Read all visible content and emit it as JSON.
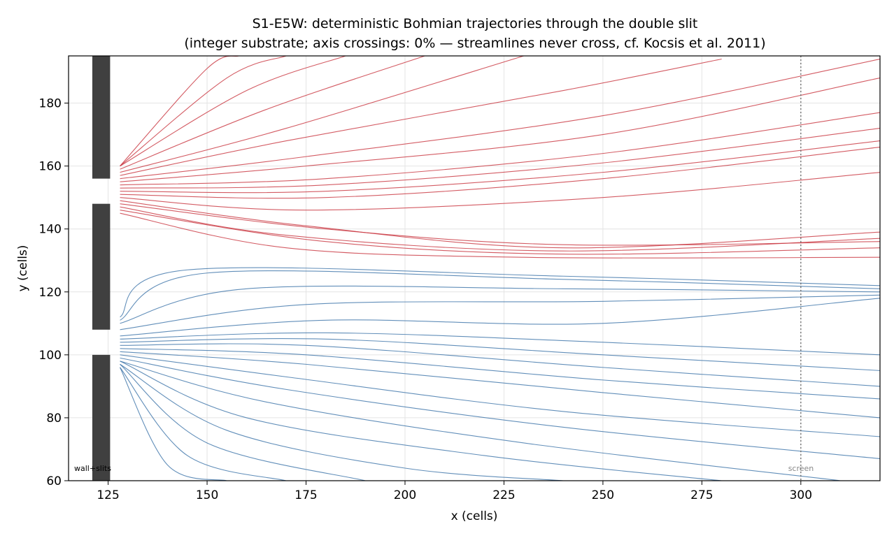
{
  "chart_data": {
    "type": "line",
    "title_line1": "S1-E5W: deterministic Bohmian trajectories through the double slit",
    "title_line2": "(integer substrate; axis crossings: 0% — streamlines never cross, cf. Kocsis et al. 2011)",
    "xlabel": "x (cells)",
    "ylabel": "y (cells)",
    "xlim": [
      115,
      320
    ],
    "ylim": [
      60,
      195
    ],
    "xticks": [
      125,
      150,
      175,
      200,
      225,
      250,
      275,
      300
    ],
    "yticks": [
      60,
      80,
      100,
      120,
      140,
      160,
      180
    ],
    "grid": true,
    "wall": {
      "x_range": [
        121,
        125.5
      ],
      "slits": [
        [
          148,
          156
        ],
        [
          100,
          108
        ]
      ],
      "label": "wall+slits"
    },
    "screen": {
      "x": 300,
      "label": "screen"
    },
    "colors": {
      "upper_slit": "#c8323c",
      "lower_slit": "#3a72a8",
      "wall": "#404040",
      "screen_line": "#666666"
    },
    "series": [
      {
        "group": "upper",
        "x": [
          128,
          180,
          240,
          320
        ],
        "y": [
          148,
          140,
          135,
          136
        ]
      },
      {
        "group": "upper",
        "x": [
          128,
          180,
          240,
          320
        ],
        "y": [
          146,
          136,
          132,
          134
        ]
      },
      {
        "group": "upper",
        "x": [
          128,
          170,
          230,
          320
        ],
        "y": [
          145,
          134,
          131,
          131
        ]
      },
      {
        "group": "upper",
        "x": [
          128,
          170,
          240,
          320
        ],
        "y": [
          147,
          138,
          133,
          137
        ]
      },
      {
        "group": "upper",
        "x": [
          128,
          175,
          240,
          320
        ],
        "y": [
          149,
          141,
          134,
          139
        ]
      },
      {
        "group": "upper",
        "x": [
          128,
          175,
          250,
          320
        ],
        "y": [
          150,
          146,
          150,
          158
        ]
      },
      {
        "group": "upper",
        "x": [
          128,
          180,
          250,
          320
        ],
        "y": [
          151,
          150,
          156,
          166
        ]
      },
      {
        "group": "upper",
        "x": [
          128,
          180,
          250,
          320
        ],
        "y": [
          152,
          152,
          158,
          168
        ]
      },
      {
        "group": "upper",
        "x": [
          128,
          180,
          250,
          320
        ],
        "y": [
          153,
          154,
          161,
          172
        ]
      },
      {
        "group": "upper",
        "x": [
          128,
          180,
          250,
          320
        ],
        "y": [
          154,
          156,
          164,
          177
        ]
      },
      {
        "group": "upper",
        "x": [
          128,
          175,
          250,
          320
        ],
        "y": [
          155,
          160,
          170,
          188
        ]
      },
      {
        "group": "upper",
        "x": [
          128,
          175,
          250,
          320
        ],
        "y": [
          156,
          163,
          176,
          194
        ]
      },
      {
        "group": "upper",
        "x": [
          128,
          170,
          240,
          280
        ],
        "y": [
          157,
          168,
          184,
          194
        ]
      },
      {
        "group": "upper",
        "x": [
          128,
          170,
          230
        ],
        "y": [
          158,
          172,
          195
        ]
      },
      {
        "group": "upper",
        "x": [
          128,
          165,
          205
        ],
        "y": [
          159,
          178,
          195
        ]
      },
      {
        "group": "upper",
        "x": [
          128,
          160,
          185
        ],
        "y": [
          160,
          184,
          195
        ]
      },
      {
        "group": "upper",
        "x": [
          128,
          155,
          170
        ],
        "y": [
          160,
          188,
          195
        ]
      },
      {
        "group": "upper",
        "x": [
          128,
          150,
          158
        ],
        "y": [
          160,
          191,
          195
        ]
      },
      {
        "group": "lower",
        "x": [
          128,
          180,
          250,
          320
        ],
        "y": [
          104,
          105,
          100,
          95
        ]
      },
      {
        "group": "lower",
        "x": [
          128,
          180,
          250,
          320
        ],
        "y": [
          105,
          107,
          104,
          100
        ]
      },
      {
        "group": "lower",
        "x": [
          128,
          180,
          250,
          320
        ],
        "y": [
          106,
          111,
          110,
          118
        ]
      },
      {
        "group": "lower",
        "x": [
          128,
          175,
          250,
          320
        ],
        "y": [
          108,
          116,
          117,
          119
        ]
      },
      {
        "group": "lower",
        "x": [
          128,
          160,
          240,
          320
        ],
        "y": [
          110,
          121,
          121,
          120
        ]
      },
      {
        "group": "lower",
        "x": [
          128,
          150,
          240,
          320
        ],
        "y": [
          111,
          126,
          124,
          121
        ]
      },
      {
        "group": "lower",
        "x": [
          128,
          145,
          240,
          320
        ],
        "y": [
          112,
          127,
          125,
          122
        ]
      },
      {
        "group": "lower",
        "x": [
          128,
          175,
          250,
          320
        ],
        "y": [
          103,
          103,
          96,
          90
        ]
      },
      {
        "group": "lower",
        "x": [
          128,
          175,
          250,
          320
        ],
        "y": [
          102,
          100,
          92,
          86
        ]
      },
      {
        "group": "lower",
        "x": [
          128,
          175,
          250,
          320
        ],
        "y": [
          101,
          97,
          88,
          80
        ]
      },
      {
        "group": "lower",
        "x": [
          128,
          170,
          240,
          320
        ],
        "y": [
          100,
          93,
          82,
          74
        ]
      },
      {
        "group": "lower",
        "x": [
          128,
          170,
          240,
          320
        ],
        "y": [
          99,
          89,
          77,
          67
        ]
      },
      {
        "group": "lower",
        "x": [
          128,
          165,
          230,
          310
        ],
        "y": [
          98,
          85,
          72,
          60
        ]
      },
      {
        "group": "lower",
        "x": [
          128,
          160,
          220,
          280
        ],
        "y": [
          98,
          80,
          68,
          60
        ]
      },
      {
        "group": "lower",
        "x": [
          128,
          155,
          200,
          240
        ],
        "y": [
          97,
          76,
          64,
          60
        ]
      },
      {
        "group": "lower",
        "x": [
          128,
          150,
          190
        ],
        "y": [
          97,
          72,
          60
        ]
      },
      {
        "group": "lower",
        "x": [
          128,
          145,
          170
        ],
        "y": [
          96,
          68,
          60
        ]
      },
      {
        "group": "lower",
        "x": [
          128,
          140,
          155
        ],
        "y": [
          96,
          65,
          60
        ]
      }
    ]
  }
}
